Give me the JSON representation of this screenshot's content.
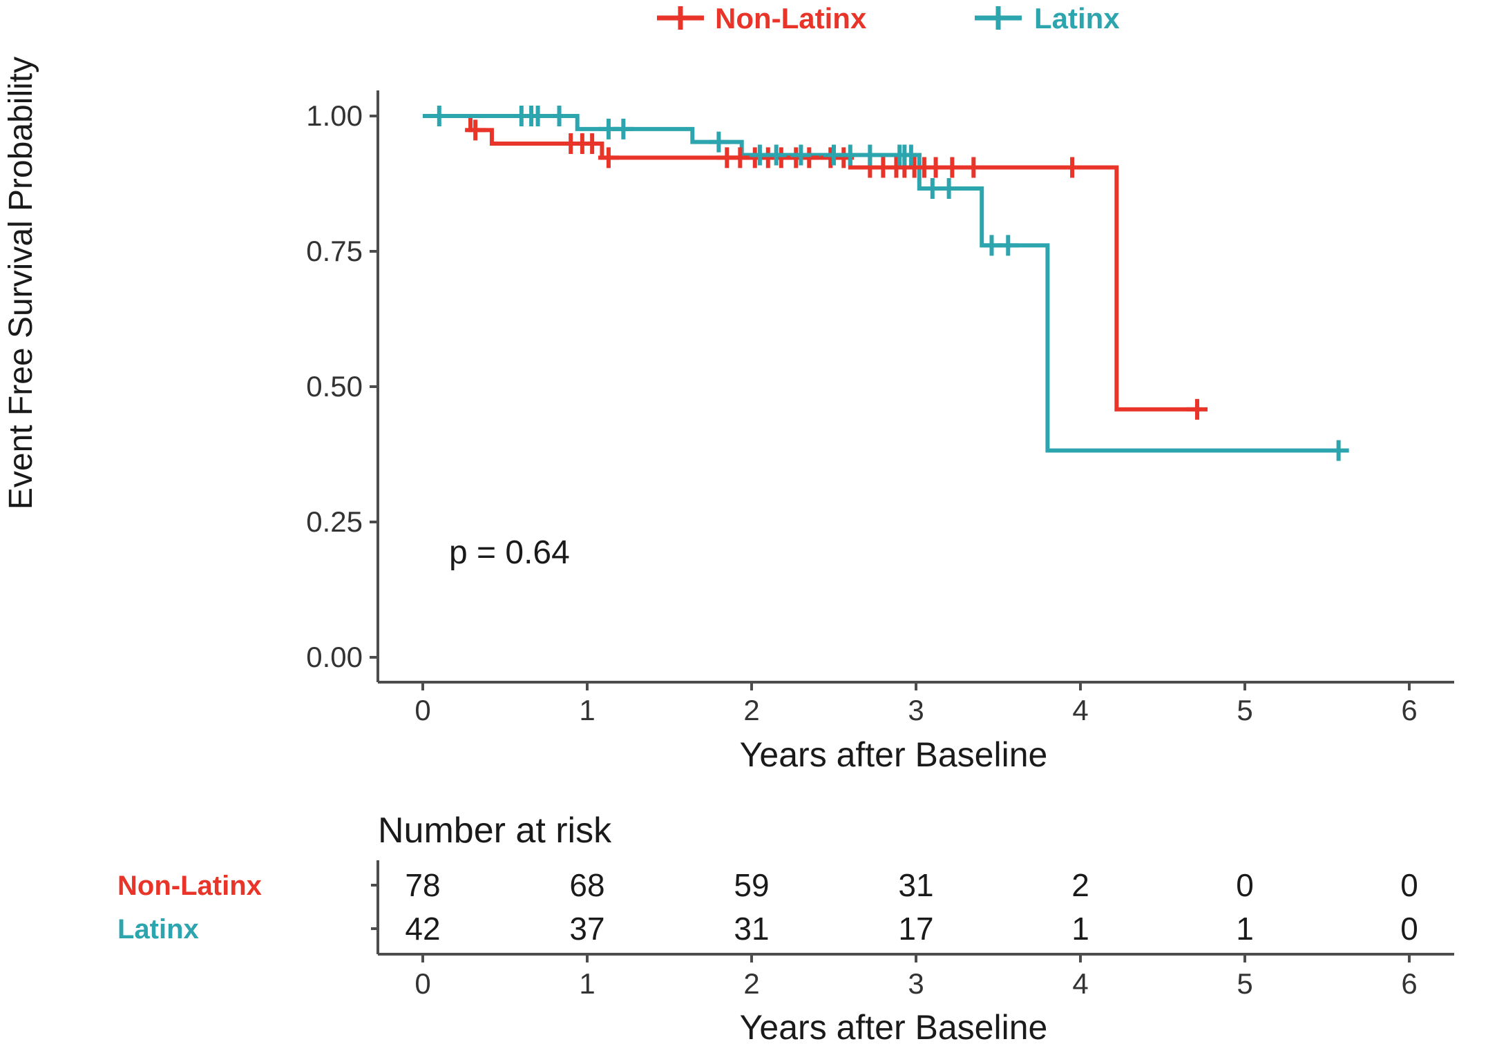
{
  "chart_data": {
    "type": "line",
    "subtype": "kaplan-meier-step",
    "title": "",
    "xlabel": "Years after Baseline",
    "ylabel": "Event Free Survival Probability",
    "xlim": [
      0,
      6
    ],
    "ylim": [
      0,
      1
    ],
    "grid": false,
    "legend_position": "top",
    "x_ticks": [
      "0",
      "1",
      "2",
      "3",
      "4",
      "5",
      "6"
    ],
    "y_ticks": [
      "1.00",
      "0.75",
      "0.50",
      "0.25",
      "0.00"
    ],
    "y_tick_values": [
      1.0,
      0.75,
      0.5,
      0.25,
      0.0
    ],
    "pvalue_label": "p = 0.64",
    "colors": {
      "non_latinx": "#e83429",
      "latinx": "#2ca5ae",
      "axis": "#4d4d4d",
      "text": "#333333"
    },
    "legend": [
      {
        "label": "Non-Latinx",
        "color": "#e83429"
      },
      {
        "label": "Latinx",
        "color": "#2ca5ae"
      }
    ],
    "series": [
      {
        "name": "Non-Latinx",
        "color": "#e83429",
        "steps": [
          [
            0,
            1.0
          ],
          [
            0.29,
            0.974
          ],
          [
            0.42,
            0.949
          ],
          [
            1.09,
            0.923
          ],
          [
            2.6,
            0.905
          ],
          [
            4.22,
            0.458
          ]
        ],
        "end": 4.73,
        "censors": [
          [
            0.32,
            0.974
          ],
          [
            0.9,
            0.949
          ],
          [
            0.97,
            0.949
          ],
          [
            1.03,
            0.949
          ],
          [
            1.13,
            0.923
          ],
          [
            1.85,
            0.923
          ],
          [
            1.93,
            0.923
          ],
          [
            2.02,
            0.923
          ],
          [
            2.1,
            0.923
          ],
          [
            2.18,
            0.923
          ],
          [
            2.27,
            0.923
          ],
          [
            2.35,
            0.923
          ],
          [
            2.48,
            0.923
          ],
          [
            2.56,
            0.923
          ],
          [
            2.72,
            0.905
          ],
          [
            2.8,
            0.905
          ],
          [
            2.88,
            0.905
          ],
          [
            2.93,
            0.905
          ],
          [
            2.99,
            0.905
          ],
          [
            3.05,
            0.905
          ],
          [
            3.12,
            0.905
          ],
          [
            3.22,
            0.905
          ],
          [
            3.35,
            0.905
          ],
          [
            3.95,
            0.905
          ],
          [
            4.71,
            0.458
          ]
        ]
      },
      {
        "name": "Latinx",
        "color": "#2ca5ae",
        "steps": [
          [
            0,
            1.0
          ],
          [
            0.94,
            0.976
          ],
          [
            1.64,
            0.952
          ],
          [
            1.94,
            0.928
          ],
          [
            3.02,
            0.866
          ],
          [
            3.4,
            0.761
          ],
          [
            3.8,
            0.382
          ]
        ],
        "end": 5.6,
        "censors": [
          [
            0.1,
            1.0
          ],
          [
            0.6,
            1.0
          ],
          [
            0.66,
            1.0
          ],
          [
            0.7,
            1.0
          ],
          [
            0.83,
            1.0
          ],
          [
            1.13,
            0.976
          ],
          [
            1.22,
            0.976
          ],
          [
            1.8,
            0.952
          ],
          [
            2.05,
            0.928
          ],
          [
            2.15,
            0.928
          ],
          [
            2.3,
            0.928
          ],
          [
            2.5,
            0.928
          ],
          [
            2.6,
            0.928
          ],
          [
            2.72,
            0.928
          ],
          [
            2.9,
            0.928
          ],
          [
            2.93,
            0.928
          ],
          [
            2.97,
            0.928
          ],
          [
            3.1,
            0.866
          ],
          [
            3.2,
            0.866
          ],
          [
            3.46,
            0.761
          ],
          [
            3.56,
            0.761
          ],
          [
            5.57,
            0.382
          ]
        ]
      }
    ],
    "risk_table": {
      "title": "Number at risk",
      "xlabel": "Years after Baseline",
      "x_ticks": [
        "0",
        "1",
        "2",
        "3",
        "4",
        "5",
        "6"
      ],
      "rows": [
        {
          "name": "Non-Latinx",
          "color": "#e83429",
          "values": [
            "78",
            "68",
            "59",
            "31",
            "2",
            "0",
            "0"
          ]
        },
        {
          "name": "Latinx",
          "color": "#2ca5ae",
          "values": [
            "42",
            "37",
            "31",
            "17",
            "1",
            "1",
            "0"
          ]
        }
      ]
    }
  }
}
